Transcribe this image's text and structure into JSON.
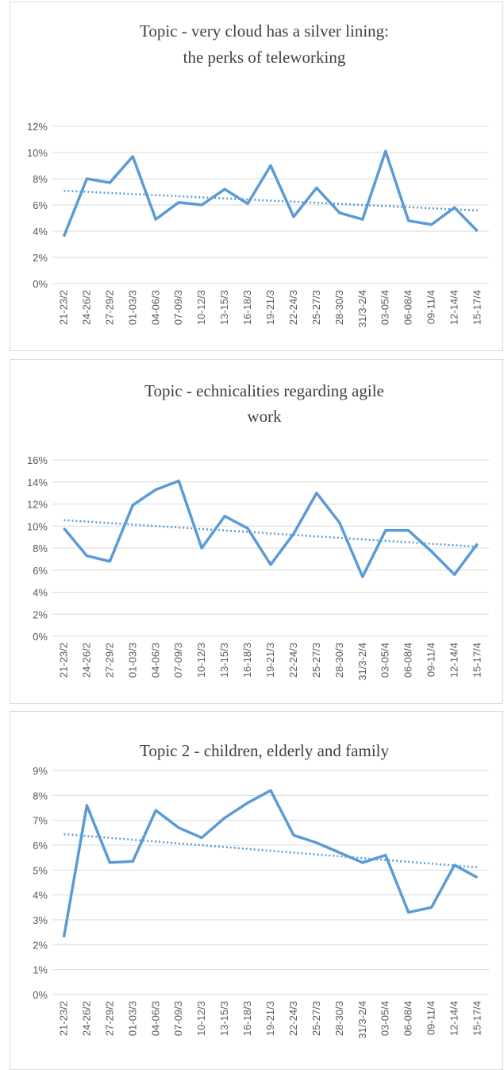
{
  "chart_data": [
    {
      "type": "line",
      "title": [
        "Topic  - very cloud has a silver lining:",
        "the perks of teleworking"
      ],
      "categories": [
        "21-23/2",
        "24-26/2",
        "27-29/2",
        "01-03/3",
        "04-06/3",
        "07-09/3",
        "10-12/3",
        "13-15/3",
        "16-18/3",
        "19-21/3",
        "22-24/3",
        "25-27/3",
        "28-30/3",
        "31/3-2/4",
        "03-05/4",
        "06-08/4",
        "09-11/4",
        "12-14/4",
        "15-17/4"
      ],
      "series": [
        {
          "color": "#5b9bd5",
          "values": [
            3.6,
            8.0,
            7.7,
            9.7,
            4.9,
            6.2,
            6.0,
            7.2,
            6.1,
            9.0,
            5.1,
            7.3,
            5.4,
            4.9,
            10.1,
            4.8,
            4.5,
            5.8,
            4.0
          ]
        }
      ],
      "trendline": true,
      "ylim": [
        0,
        12
      ],
      "yticks": [
        {
          "value": 0,
          "label": "0%"
        },
        {
          "value": 2,
          "label": "2%"
        },
        {
          "value": 4,
          "label": "4%"
        },
        {
          "value": 6,
          "label": "6%"
        },
        {
          "value": 8,
          "label": "8%"
        },
        {
          "value": 10,
          "label": "10%"
        },
        {
          "value": 12,
          "label": "12%"
        }
      ],
      "grid": true
    },
    {
      "type": "line",
      "title": [
        "Topic  - echnicalities regarding agile",
        "work"
      ],
      "categories": [
        "21-23/2",
        "24-26/2",
        "27-29/2",
        "01-03/3",
        "04-06/3",
        "07-09/3",
        "10-12/3",
        "13-15/3",
        "16-18/3",
        "19-21/3",
        "22-24/3",
        "25-27/3",
        "28-30/3",
        "31/3-2/4",
        "03-05/4",
        "06-08/4",
        "09-11/4",
        "12-14/4",
        "15-17/4"
      ],
      "series": [
        {
          "color": "#5b9bd5",
          "values": [
            9.8,
            7.3,
            6.8,
            11.9,
            13.3,
            14.1,
            8.0,
            10.9,
            9.8,
            6.5,
            9.3,
            13.0,
            10.3,
            5.4,
            9.6,
            9.6,
            7.7,
            5.6,
            8.4
          ]
        }
      ],
      "trendline": true,
      "ylim": [
        0,
        16
      ],
      "yticks": [
        {
          "value": 0,
          "label": "0%"
        },
        {
          "value": 2,
          "label": "2%"
        },
        {
          "value": 4,
          "label": "4%"
        },
        {
          "value": 6,
          "label": "6%"
        },
        {
          "value": 8,
          "label": "8%"
        },
        {
          "value": 10,
          "label": "10%"
        },
        {
          "value": 12,
          "label": "12%"
        },
        {
          "value": 14,
          "label": "14%"
        },
        {
          "value": 16,
          "label": "16%"
        }
      ],
      "grid": true
    },
    {
      "type": "line",
      "title": [
        "Topic  2 - children, elderly and family"
      ],
      "categories": [
        "21-23/2",
        "24-26/2",
        "27-29/2",
        "01-03/3",
        "04-06/3",
        "07-09/3",
        "10-12/3",
        "13-15/3",
        "16-18/3",
        "19-21/3",
        "22-24/3",
        "25-27/3",
        "28-30/3",
        "31/3-2/4",
        "03-05/4",
        "06-08/4",
        "09-11/4",
        "12-14/4",
        "15-17/4"
      ],
      "series": [
        {
          "color": "#5b9bd5",
          "values": [
            2.3,
            7.6,
            5.3,
            5.35,
            7.4,
            6.7,
            6.3,
            7.1,
            7.7,
            8.2,
            6.4,
            6.1,
            5.7,
            5.3,
            5.6,
            3.3,
            3.5,
            5.2,
            4.7
          ]
        }
      ],
      "trendline": true,
      "ylim": [
        0,
        9
      ],
      "yticks": [
        {
          "value": 0,
          "label": "0%"
        },
        {
          "value": 1,
          "label": "1%"
        },
        {
          "value": 2,
          "label": "2%"
        },
        {
          "value": 3,
          "label": "3%"
        },
        {
          "value": 4,
          "label": "4%"
        },
        {
          "value": 5,
          "label": "5%"
        },
        {
          "value": 6,
          "label": "6%"
        },
        {
          "value": 7,
          "label": "7%"
        },
        {
          "value": 8,
          "label": "8%"
        },
        {
          "value": 9,
          "label": "9%"
        }
      ],
      "grid": true
    }
  ]
}
